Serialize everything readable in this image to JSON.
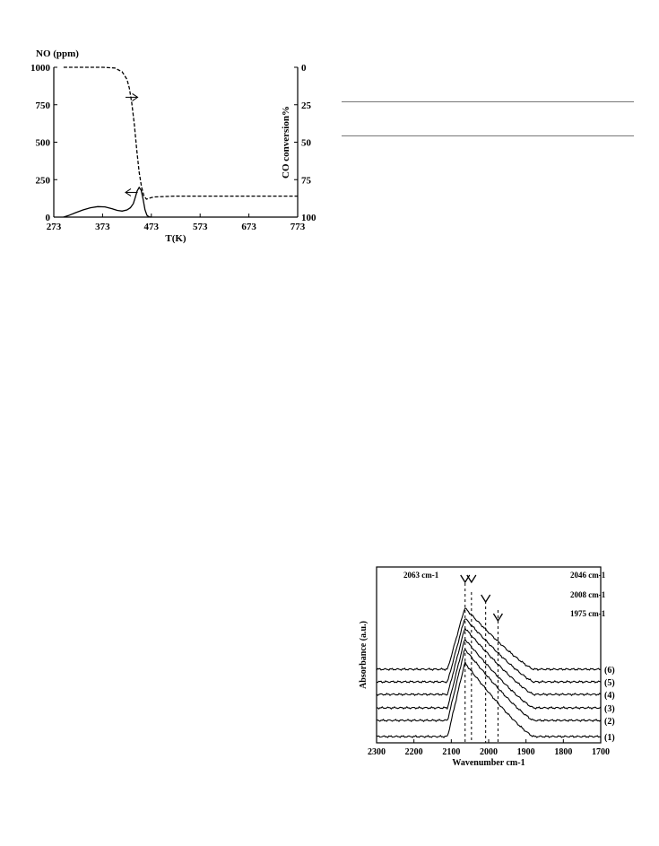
{
  "chart_data": [
    {
      "type": "line",
      "xlabel": "T(K)",
      "ylabel_left": "NO (ppm)",
      "ylabel_right": "CO conversion%",
      "xlim": [
        273,
        773
      ],
      "ylim_left": [
        0,
        1000
      ],
      "ylim_right": [
        100,
        0
      ],
      "x_ticks": [
        273,
        373,
        473,
        573,
        673,
        773
      ],
      "y_ticks_left": [
        0,
        250,
        500,
        750,
        1000
      ],
      "y_ticks_right": [
        0,
        25,
        50,
        75,
        100
      ],
      "series": [
        {
          "axis": "left",
          "style": "solid",
          "x": [
            293,
            303,
            318,
            333,
            348,
            363,
            378,
            393,
            403,
            413,
            423,
            430,
            436,
            440,
            444,
            448,
            452,
            456,
            460,
            464,
            468,
            472
          ],
          "y": [
            0,
            10,
            30,
            48,
            62,
            70,
            68,
            55,
            45,
            40,
            48,
            62,
            90,
            130,
            175,
            198,
            180,
            120,
            50,
            12,
            2,
            0
          ]
        },
        {
          "axis": "right",
          "style": "dashed",
          "x": [
            293,
            333,
            373,
            398,
            413,
            423,
            428,
            433,
            438,
            443,
            448,
            453,
            458,
            463,
            468,
            473,
            480,
            520,
            573,
            673,
            773
          ],
          "y": [
            0,
            0,
            0,
            0.5,
            3,
            8,
            14,
            24,
            38,
            55,
            70,
            80,
            86,
            88,
            87.5,
            87,
            86.5,
            86,
            86,
            86,
            86
          ]
        }
      ],
      "arrows": [
        {
          "points_to": "right",
          "at": [
            443,
            77
          ]
        },
        {
          "points_to": "left",
          "at": [
            428,
            175
          ]
        }
      ]
    },
    {
      "type": "line",
      "xlabel": "Wavenumber cm-1",
      "ylabel": "Absorbance (a.u.)",
      "xlim": [
        2300,
        1700
      ],
      "x_ticks": [
        2300,
        2200,
        2100,
        2000,
        1900,
        1800,
        1700
      ],
      "reference_lines": [
        2063,
        2046,
        2008,
        1975
      ],
      "annotations": [
        "2063 cm-1",
        "2046 cm-1",
        "2008 cm-1",
        "1975 cm-1"
      ],
      "series_labels": [
        "(1)",
        "(2)",
        "(3)",
        "(4)",
        "(5)",
        "(6)"
      ],
      "series_heights": [
        0.6,
        0.58,
        0.56,
        0.54,
        0.52,
        0.5
      ]
    }
  ]
}
